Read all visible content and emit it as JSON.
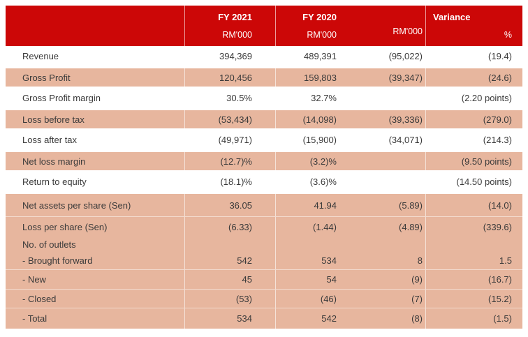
{
  "colors": {
    "header_red": "#cc0707",
    "row_salmon": "#e7b69e",
    "body_text": "#3a3a3a",
    "header_text": "#ffffff"
  },
  "table": {
    "header": {
      "fy2021_title": "FY 2021",
      "fy2021_unit": "RM'000",
      "fy2020_title": "FY 2020",
      "fy2020_unit": "RM'000",
      "variance_rm_unit": "RM'000",
      "variance_title": "Variance",
      "variance_pct_unit": "%"
    },
    "rows": [
      {
        "label": "Revenue",
        "fy2021": "394,369",
        "fy2020": "489,391",
        "variance_rm": "(95,022)",
        "variance_pct": "(19.4)"
      },
      {
        "label": "Gross Profit",
        "fy2021": "120,456",
        "fy2020": "159,803",
        "variance_rm": "(39,347)",
        "variance_pct": "(24.6)"
      },
      {
        "label": "Gross Profit margin",
        "fy2021": "30.5%",
        "fy2020": "32.7%",
        "variance_rm": "",
        "variance_pct": "(2.20 points)"
      },
      {
        "label": "Loss before tax",
        "fy2021": "(53,434)",
        "fy2020": "(14,098)",
        "variance_rm": "(39,336)",
        "variance_pct": "(279.0)"
      },
      {
        "label": "Loss after tax",
        "fy2021": "(49,971)",
        "fy2020": "(15,900)",
        "variance_rm": "(34,071)",
        "variance_pct": "(214.3)"
      },
      {
        "label": "Net loss margin",
        "fy2021": "(12.7)%",
        "fy2020": "(3.2)%",
        "variance_rm": "",
        "variance_pct": "(9.50 points)"
      },
      {
        "label": "Return to equity",
        "fy2021": "(18.1)%",
        "fy2020": "(3.6)%",
        "variance_rm": "",
        "variance_pct": "(14.50 points)"
      },
      {
        "label": "Net assets per share (Sen)",
        "fy2021": "36.05",
        "fy2020": "41.94",
        "variance_rm": "(5.89)",
        "variance_pct": "(14.0)"
      },
      {
        "label": "Loss per share (Sen)",
        "fy2021": "(6.33)",
        "fy2020": "(1.44)",
        "variance_rm": "(4.89)",
        "variance_pct": "(339.6)"
      },
      {
        "label": "No. of outlets",
        "fy2021": "",
        "fy2020": "",
        "variance_rm": "",
        "variance_pct": ""
      },
      {
        "label": "- Brought forward",
        "fy2021": "542",
        "fy2020": "534",
        "variance_rm": "8",
        "variance_pct": "1.5"
      },
      {
        "label": "- New",
        "fy2021": "45",
        "fy2020": "54",
        "variance_rm": "(9)",
        "variance_pct": "(16.7)"
      },
      {
        "label": "- Closed",
        "fy2021": "(53)",
        "fy2020": "(46)",
        "variance_rm": "(7)",
        "variance_pct": "(15.2)"
      },
      {
        "label": "- Total",
        "fy2021": "534",
        "fy2020": "542",
        "variance_rm": "(8)",
        "variance_pct": "(1.5)"
      }
    ]
  }
}
